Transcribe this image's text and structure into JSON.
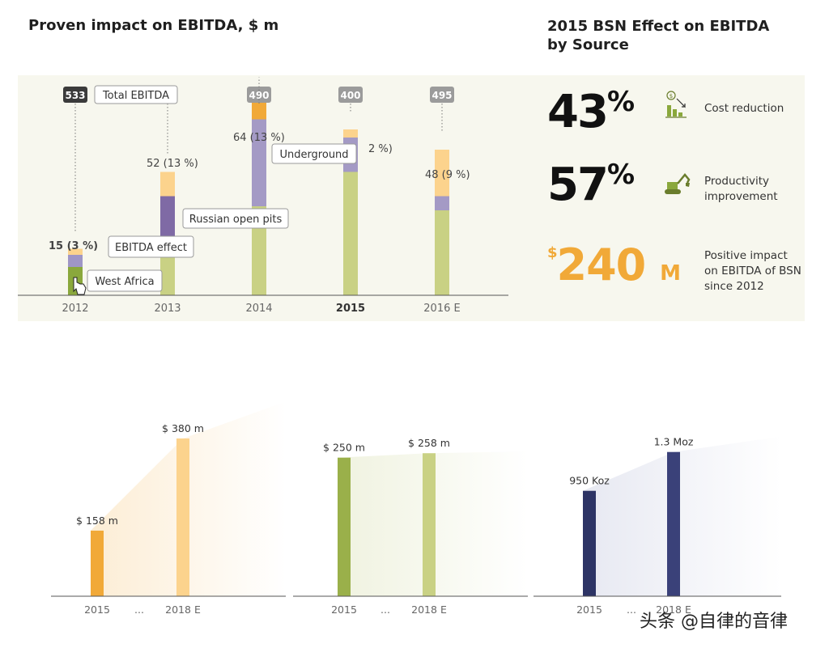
{
  "titles": {
    "left": "Proven impact on EBITDA, $ m",
    "right": "2015 BSN Effect on EBITDA by Source"
  },
  "chart_data": [
    {
      "type": "bar",
      "title": "Proven impact on EBITDA, $ m",
      "categories": [
        "2012",
        "2013",
        "2014",
        "2015",
        "2016 E"
      ],
      "bold_category": "2015",
      "total_ebitda": [
        533,
        null,
        490,
        400,
        495
      ],
      "effect_labels": [
        "15 (3 %)",
        "52 (13 %)",
        "64 (13 %)",
        "2 %)",
        "48 (9 %)"
      ],
      "series": [
        {
          "name": "West Africa",
          "color": "#8aa83c",
          "values": [
            4,
            0,
            0,
            0,
            0
          ]
        },
        {
          "name": "Russian open pits",
          "color": "#c9d184",
          "values": [
            0,
            0,
            0,
            0,
            0
          ]
        },
        {
          "name": "Underground",
          "color": "#f1a938",
          "values": [
            0,
            0,
            6,
            0,
            0
          ]
        },
        {
          "name": "EBITDA effect",
          "color": "#c0b3d6",
          "values": [
            4,
            0,
            0,
            0,
            0
          ]
        }
      ],
      "segments": [
        [
          {
            "v": 14,
            "c": "#8aa83c"
          },
          {
            "v": 6,
            "c": "#9f96c6"
          },
          {
            "v": 3,
            "c": "#fcd38d"
          }
        ],
        [
          {
            "v": 22,
            "c": "#c9d184"
          },
          {
            "v": 27,
            "c": "#7f6aa5"
          },
          {
            "v": 12,
            "c": "#fcd38d"
          }
        ],
        [
          {
            "v": 44,
            "c": "#c9d184"
          },
          {
            "v": 43,
            "c": "#a49ac5"
          },
          {
            "v": 12,
            "c": "#f1a938"
          }
        ],
        [
          {
            "v": 61,
            "c": "#c9d184"
          },
          {
            "v": 17,
            "c": "#a49ac5"
          },
          {
            "v": 4,
            "c": "#fcd38d"
          }
        ],
        [
          {
            "v": 42,
            "c": "#c9d184"
          },
          {
            "v": 7,
            "c": "#a49ac5"
          },
          {
            "v": 23,
            "c": "#fcd38d"
          }
        ]
      ],
      "callouts": [
        "Total EBITDA",
        "Underground",
        "Russian open pits",
        "EBITDA effect",
        "West Africa"
      ]
    },
    {
      "type": "bar",
      "categories": [
        "2015",
        "...",
        "2018 E"
      ],
      "values": [
        158,
        null,
        380
      ],
      "labels": [
        "$ 158 m",
        "",
        "$ 380 m"
      ],
      "colors": [
        "#f1a938",
        "",
        "#fcd38d"
      ]
    },
    {
      "type": "bar",
      "categories": [
        "2015",
        "...",
        "2018 E"
      ],
      "values": [
        250,
        null,
        258
      ],
      "labels": [
        "$ 250 m",
        "",
        "$ 258 m"
      ],
      "colors": [
        "#9ab04a",
        "",
        "#c9d184"
      ]
    },
    {
      "type": "bar",
      "categories": [
        "2015",
        "...",
        "2018 E"
      ],
      "values": [
        950,
        null,
        1300
      ],
      "labels": [
        "950 Koz",
        "",
        "1.3 Moz"
      ],
      "colors": [
        "#2d3465",
        "",
        "#3a4179"
      ]
    }
  ],
  "kpis": [
    {
      "value": "43",
      "suffix": "%",
      "desc": "Cost reduction",
      "icon": "cost-reduction-icon"
    },
    {
      "value": "57",
      "suffix": "%",
      "desc": "Productivity improvement",
      "icon": "excavator-icon"
    }
  ],
  "impact": {
    "currency": "$",
    "value": "240",
    "unit": "M",
    "desc": "Positive impact on EBITDA of BSN since 2012"
  },
  "watermark": "头条 @自律的音律"
}
